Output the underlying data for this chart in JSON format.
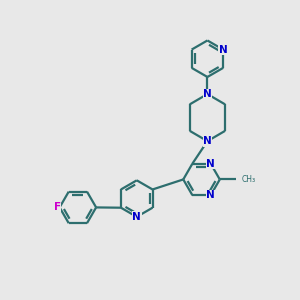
{
  "background_color": "#e8e8e8",
  "bond_color": "#2d6e6e",
  "nitrogen_color": "#0000cc",
  "fluorine_color": "#cc00cc",
  "line_width": 1.6,
  "figsize": [
    3.0,
    3.0
  ],
  "dpi": 100,
  "xlim": [
    0,
    10
  ],
  "ylim": [
    0,
    10
  ]
}
